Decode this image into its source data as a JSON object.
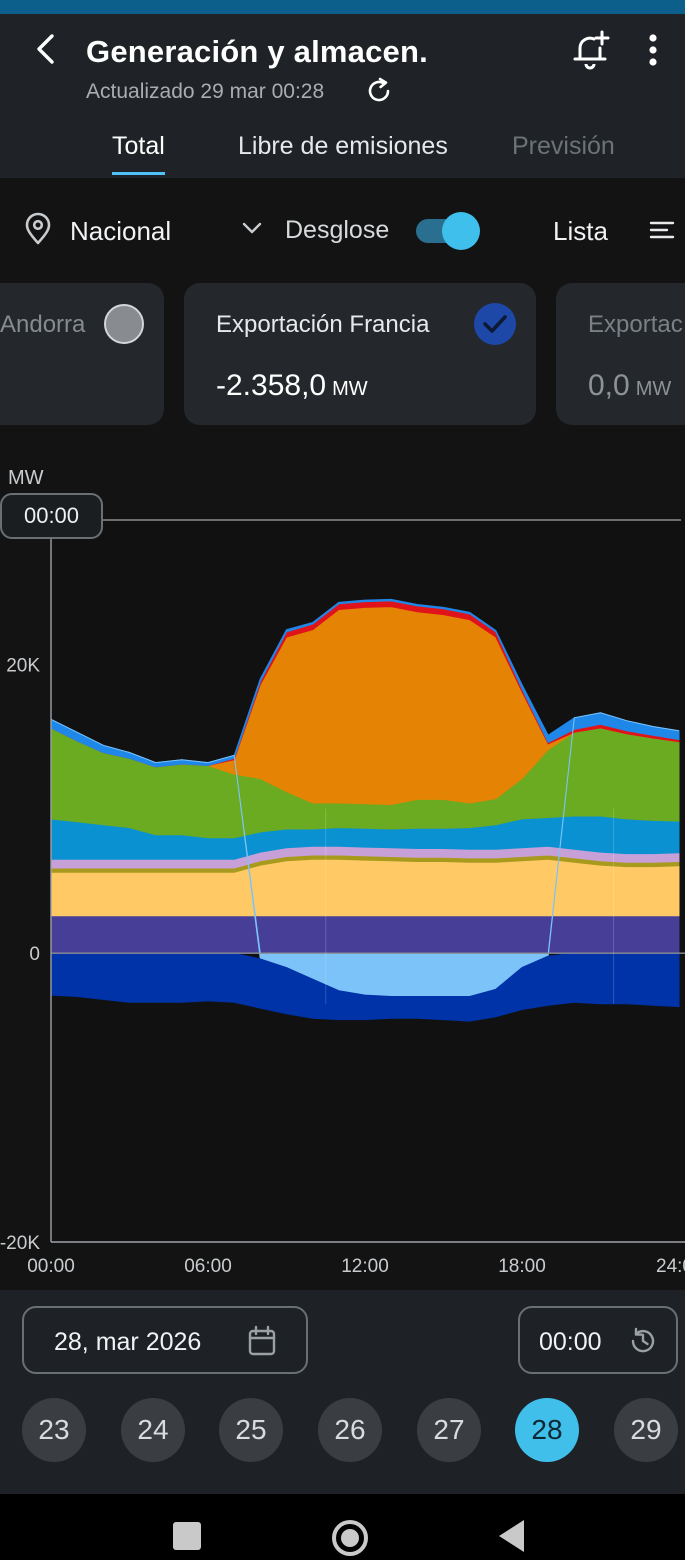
{
  "header": {
    "title": "Generación y almacen.",
    "updated": "Actualizado 29 mar 00:28",
    "tabs": [
      "Total",
      "Libre de emisiones",
      "Previsión"
    ]
  },
  "filters": {
    "region": "Nacional",
    "breakdown_label": "Desglose",
    "breakdown_on": true,
    "view_label": "Lista"
  },
  "cards": [
    {
      "name": "Andorra",
      "selected": false
    },
    {
      "name": "Exportación Francia",
      "value": "-2.358,0",
      "unit": "MW",
      "selected": true
    },
    {
      "name": "Exportac",
      "value": "0,0",
      "unit": "MW",
      "selected": false
    }
  ],
  "chart_data": {
    "type": "area",
    "stacked": true,
    "ylabel": "MW",
    "ylim": [
      -20000,
      30000
    ],
    "yticks": [
      "20K",
      "0",
      "-20K"
    ],
    "xticks": [
      "00:00",
      "06:00",
      "12:00",
      "18:00",
      "24:00"
    ],
    "xtick_labels": [
      "00:00",
      "06:00",
      "12:00",
      "18:00",
      "24:0"
    ],
    "cursor_time": "00:00",
    "x": [
      0,
      1,
      2,
      3,
      4,
      5,
      6,
      7,
      8,
      9,
      10,
      11,
      12,
      13,
      14,
      15,
      16,
      17,
      18,
      19,
      20,
      21,
      22,
      23,
      24
    ],
    "series": [
      {
        "color": "#473f97",
        "values": [
          2600,
          2600,
          2600,
          2600,
          2600,
          2600,
          2600,
          2600,
          2600,
          2600,
          2600,
          2600,
          2600,
          2600,
          2600,
          2600,
          2600,
          2600,
          2600,
          2600,
          2600,
          2600,
          2600,
          2600,
          2600
        ]
      },
      {
        "color": "#ffc966",
        "values": [
          3000,
          3000,
          3000,
          3000,
          3000,
          3000,
          3000,
          3000,
          3500,
          3800,
          3900,
          3900,
          3850,
          3800,
          3750,
          3750,
          3700,
          3700,
          3800,
          3900,
          3700,
          3500,
          3400,
          3400,
          3450
        ]
      },
      {
        "color": "#a89a1c",
        "values": [
          300,
          300,
          300,
          300,
          300,
          300,
          300,
          300,
          300,
          300,
          300,
          300,
          300,
          300,
          300,
          300,
          300,
          300,
          300,
          300,
          300,
          300,
          300,
          300,
          300
        ]
      },
      {
        "color": "#c8a0d8",
        "values": [
          600,
          600,
          600,
          600,
          600,
          600,
          600,
          600,
          600,
          600,
          600,
          600,
          600,
          600,
          600,
          600,
          600,
          600,
          600,
          600,
          600,
          600,
          600,
          600,
          600
        ]
      },
      {
        "color": "#0a91d1",
        "values": [
          2800,
          2600,
          2400,
          2200,
          1700,
          1700,
          1500,
          1500,
          1400,
          1300,
          1200,
          1300,
          1300,
          1300,
          1400,
          1400,
          1500,
          1700,
          2000,
          2000,
          2300,
          2500,
          2400,
          2300,
          2200
        ]
      },
      {
        "color": "#6aab22",
        "values": [
          6300,
          5600,
          5000,
          4800,
          4700,
          4900,
          5000,
          4400,
          3700,
          2600,
          1800,
          1700,
          1700,
          1700,
          2000,
          2000,
          1700,
          1800,
          2800,
          4700,
          5800,
          6100,
          5900,
          5700,
          5500
        ]
      },
      {
        "color": "#e58304",
        "values": [
          0,
          0,
          0,
          0,
          0,
          0,
          0,
          1000,
          6500,
          10700,
          12000,
          13400,
          13600,
          13700,
          13000,
          12800,
          12700,
          11200,
          6000,
          400,
          0,
          0,
          0,
          0,
          0
        ]
      },
      {
        "color": "#e0131a",
        "values": [
          0,
          0,
          0,
          0,
          0,
          0,
          0,
          100,
          200,
          350,
          400,
          400,
          400,
          400,
          400,
          400,
          400,
          350,
          200,
          100,
          200,
          250,
          200,
          200,
          150
        ]
      },
      {
        "color": "#1f87e8",
        "values": [
          600,
          600,
          500,
          400,
          300,
          300,
          200,
          200,
          200,
          150,
          100,
          100,
          100,
          100,
          100,
          100,
          100,
          100,
          300,
          500,
          800,
          800,
          700,
          600,
          600
        ]
      },
      {
        "color": "#7cc3f9",
        "values": [
          0,
          0,
          0,
          0,
          0,
          0,
          0,
          0,
          -400,
          -1000,
          -1800,
          -2600,
          -2900,
          -3000,
          -3000,
          -3000,
          -3000,
          -2500,
          -1000,
          -200,
          0,
          0,
          0,
          0,
          0
        ]
      },
      {
        "color": "#0033a7",
        "values": [
          -2900,
          -3000,
          -3200,
          -3400,
          -3400,
          -3400,
          -3300,
          -3400,
          -3400,
          -3200,
          -2700,
          -2000,
          -1700,
          -1500,
          -1500,
          -1600,
          -1700,
          -1900,
          -2900,
          -3400,
          -3400,
          -3500,
          -3500,
          -3600,
          -3700
        ]
      }
    ]
  },
  "bottom": {
    "date": "28, mar 2026",
    "time": "00:00",
    "days": [
      "23",
      "24",
      "25",
      "26",
      "27",
      "28",
      "29"
    ],
    "selected_day": "28"
  },
  "colors": {
    "accent": "#3fbfea",
    "appbar": "#1f2327",
    "background": "#131314",
    "check": "#1d48a8"
  },
  "icons": [
    "back-arrow-icon",
    "refresh-icon",
    "add-alert-bell-icon",
    "more-vert-icon",
    "location-pin-icon",
    "chevron-down-icon",
    "sort-list-icon",
    "check-icon",
    "calendar-icon",
    "history-icon"
  ]
}
